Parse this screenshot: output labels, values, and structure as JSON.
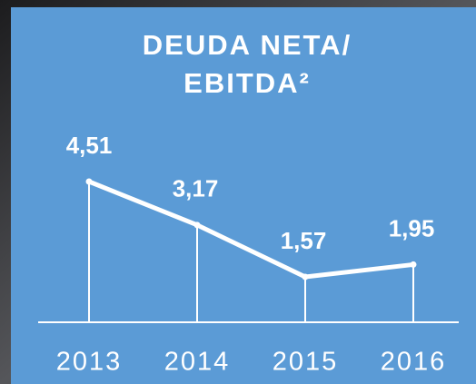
{
  "chart_data": {
    "type": "line",
    "title": [
      "DEUDA NETA/",
      "EBITDA²"
    ],
    "categories": [
      "2013",
      "2014",
      "2015",
      "2016"
    ],
    "values": [
      4.51,
      3.17,
      1.57,
      1.95
    ],
    "value_labels": [
      "4,51",
      "3,17",
      "1,57",
      "1,95"
    ],
    "color": "#ffffff"
  }
}
